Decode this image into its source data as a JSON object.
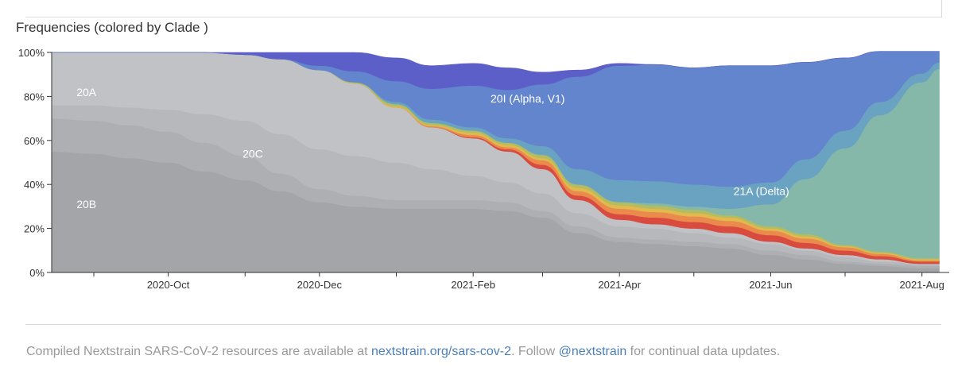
{
  "header": {
    "title": "Frequencies (colored by Clade )"
  },
  "footer": {
    "prefix": "Compiled Nextstrain SARS-CoV-2 resources are available at ",
    "link1": "nextstrain.org/sars-cov-2",
    "middle": ". Follow ",
    "link2": "@nextstrain",
    "suffix": " for continual data updates."
  },
  "chart_data": {
    "type": "area",
    "stacked": true,
    "title": "Frequencies (colored by Clade )",
    "xlabel": "",
    "ylabel": "",
    "ylim": [
      0,
      100
    ],
    "y_ticks": [
      "0%",
      "20%",
      "40%",
      "60%",
      "80%",
      "100%"
    ],
    "x_ticks": [
      "2020-Oct",
      "2020-Dec",
      "2021-Feb",
      "2021-Apr",
      "2021-Jun",
      "2021-Aug"
    ],
    "xlim": [
      "2020-08-15",
      "2021-08-12"
    ],
    "x": [
      "2020-08-15",
      "2020-09-01",
      "2020-09-15",
      "2020-10-01",
      "2020-10-15",
      "2020-11-01",
      "2020-11-15",
      "2020-12-01",
      "2020-12-15",
      "2021-01-01",
      "2021-01-15",
      "2021-02-01",
      "2021-02-15",
      "2021-03-01",
      "2021-03-15",
      "2021-04-01",
      "2021-04-15",
      "2021-05-01",
      "2021-05-15",
      "2021-06-01",
      "2021-06-15",
      "2021-07-01",
      "2021-07-15",
      "2021-08-01",
      "2021-08-08"
    ],
    "series": [
      {
        "name": "20B",
        "color": "#a3a5a8",
        "values": [
          55,
          54,
          52,
          50,
          46,
          42,
          37,
          32,
          30,
          29,
          29,
          29,
          28,
          25,
          18,
          14,
          13,
          12,
          11,
          8,
          6,
          4,
          3,
          2,
          2
        ]
      },
      {
        "name": "",
        "color": "#adafb2",
        "values": [
          15,
          15,
          15,
          14,
          13,
          11,
          8,
          6,
          5,
          4,
          4,
          4,
          4,
          3,
          3,
          2,
          2,
          2,
          2,
          2,
          2,
          1,
          1,
          1,
          1
        ]
      },
      {
        "name": "20C",
        "color": "#b6b8bb",
        "values": [
          6,
          7,
          8,
          10,
          13,
          16,
          18,
          18,
          18,
          17,
          14,
          11,
          9,
          8,
          6,
          5,
          5,
          4,
          3,
          3,
          2,
          2,
          1,
          1,
          1
        ]
      },
      {
        "name": "20A",
        "color": "#c0c2c5",
        "values": [
          24,
          24,
          25,
          26,
          28,
          30,
          34,
          36,
          33,
          25,
          19,
          17,
          14,
          11,
          6,
          3,
          2,
          2,
          2,
          1,
          1,
          1,
          1,
          0,
          0
        ]
      },
      {
        "name": "",
        "color": "#d94b3e",
        "values": [
          0,
          0,
          0,
          0,
          0,
          0,
          0,
          0,
          0,
          0,
          0,
          0.5,
          1,
          2,
          2,
          2.5,
          3,
          3,
          3,
          3,
          2.5,
          2,
          1.5,
          1,
          1
        ]
      },
      {
        "name": "",
        "color": "#ea8a4c",
        "values": [
          0,
          0,
          0,
          0,
          0,
          0,
          0,
          0,
          0,
          0,
          0.5,
          1,
          1,
          2,
          2,
          2.5,
          2.5,
          2.5,
          2.5,
          2,
          2,
          1.5,
          1,
          0.5,
          0.5
        ]
      },
      {
        "name": "",
        "color": "#e1b94f",
        "values": [
          0,
          0,
          0,
          0,
          0,
          0,
          0,
          0,
          0,
          0.5,
          0.5,
          1,
          1,
          1,
          1.5,
          1.5,
          1.5,
          1.5,
          1.5,
          1,
          1,
          0.5,
          0.5,
          0.5,
          0.5
        ]
      },
      {
        "name": "",
        "color": "#b3bd60",
        "values": [
          0,
          0,
          0,
          0,
          0,
          0,
          0,
          0,
          0.5,
          1,
          1,
          1,
          1,
          1.5,
          1.5,
          1.5,
          1.5,
          1.5,
          1,
          1,
          1,
          0.5,
          0.5,
          0.5,
          0.5
        ]
      },
      {
        "name": "21A (Delta)",
        "color": "#86b8a9",
        "values": [
          0,
          0,
          0,
          0,
          0,
          0,
          0,
          0,
          0,
          0,
          0,
          0,
          0,
          0,
          0,
          0,
          1,
          1.5,
          3,
          10,
          25,
          44,
          62,
          80,
          86
        ]
      },
      {
        "name": "",
        "color": "#6aa3c2",
        "values": [
          0,
          0,
          0,
          0,
          0,
          0,
          0,
          0,
          0,
          1,
          1.5,
          1.5,
          2,
          4,
          7,
          10,
          10,
          10,
          10,
          10,
          9,
          8,
          6,
          4,
          3
        ]
      },
      {
        "name": "20I (Alpha, V1)",
        "color": "#6385cd",
        "values": [
          0,
          0,
          0,
          0,
          0,
          0,
          0,
          2,
          5,
          9.5,
          14,
          19,
          22,
          28,
          42,
          52,
          53,
          53,
          55,
          53,
          44,
          33,
          23,
          10,
          5
        ]
      },
      {
        "name": "",
        "color": "#5d5fc9",
        "values": [
          0,
          0,
          0,
          0,
          0,
          1,
          3,
          6,
          8.5,
          10.5,
          10.5,
          10,
          10,
          5.5,
          3,
          1,
          0,
          0,
          0,
          0,
          0,
          0,
          0,
          0,
          0
        ]
      }
    ],
    "labels": [
      {
        "text": "20A",
        "x": "2020-08-25",
        "y": 82
      },
      {
        "text": "20C",
        "x": "2020-10-31",
        "y": 54
      },
      {
        "text": "20B",
        "x": "2020-08-25",
        "y": 31
      },
      {
        "text": "20I (Alpha, V1)",
        "x": "2021-02-08",
        "y": 79
      },
      {
        "text": "21A (Delta)",
        "x": "2021-05-17",
        "y": 37
      }
    ]
  }
}
